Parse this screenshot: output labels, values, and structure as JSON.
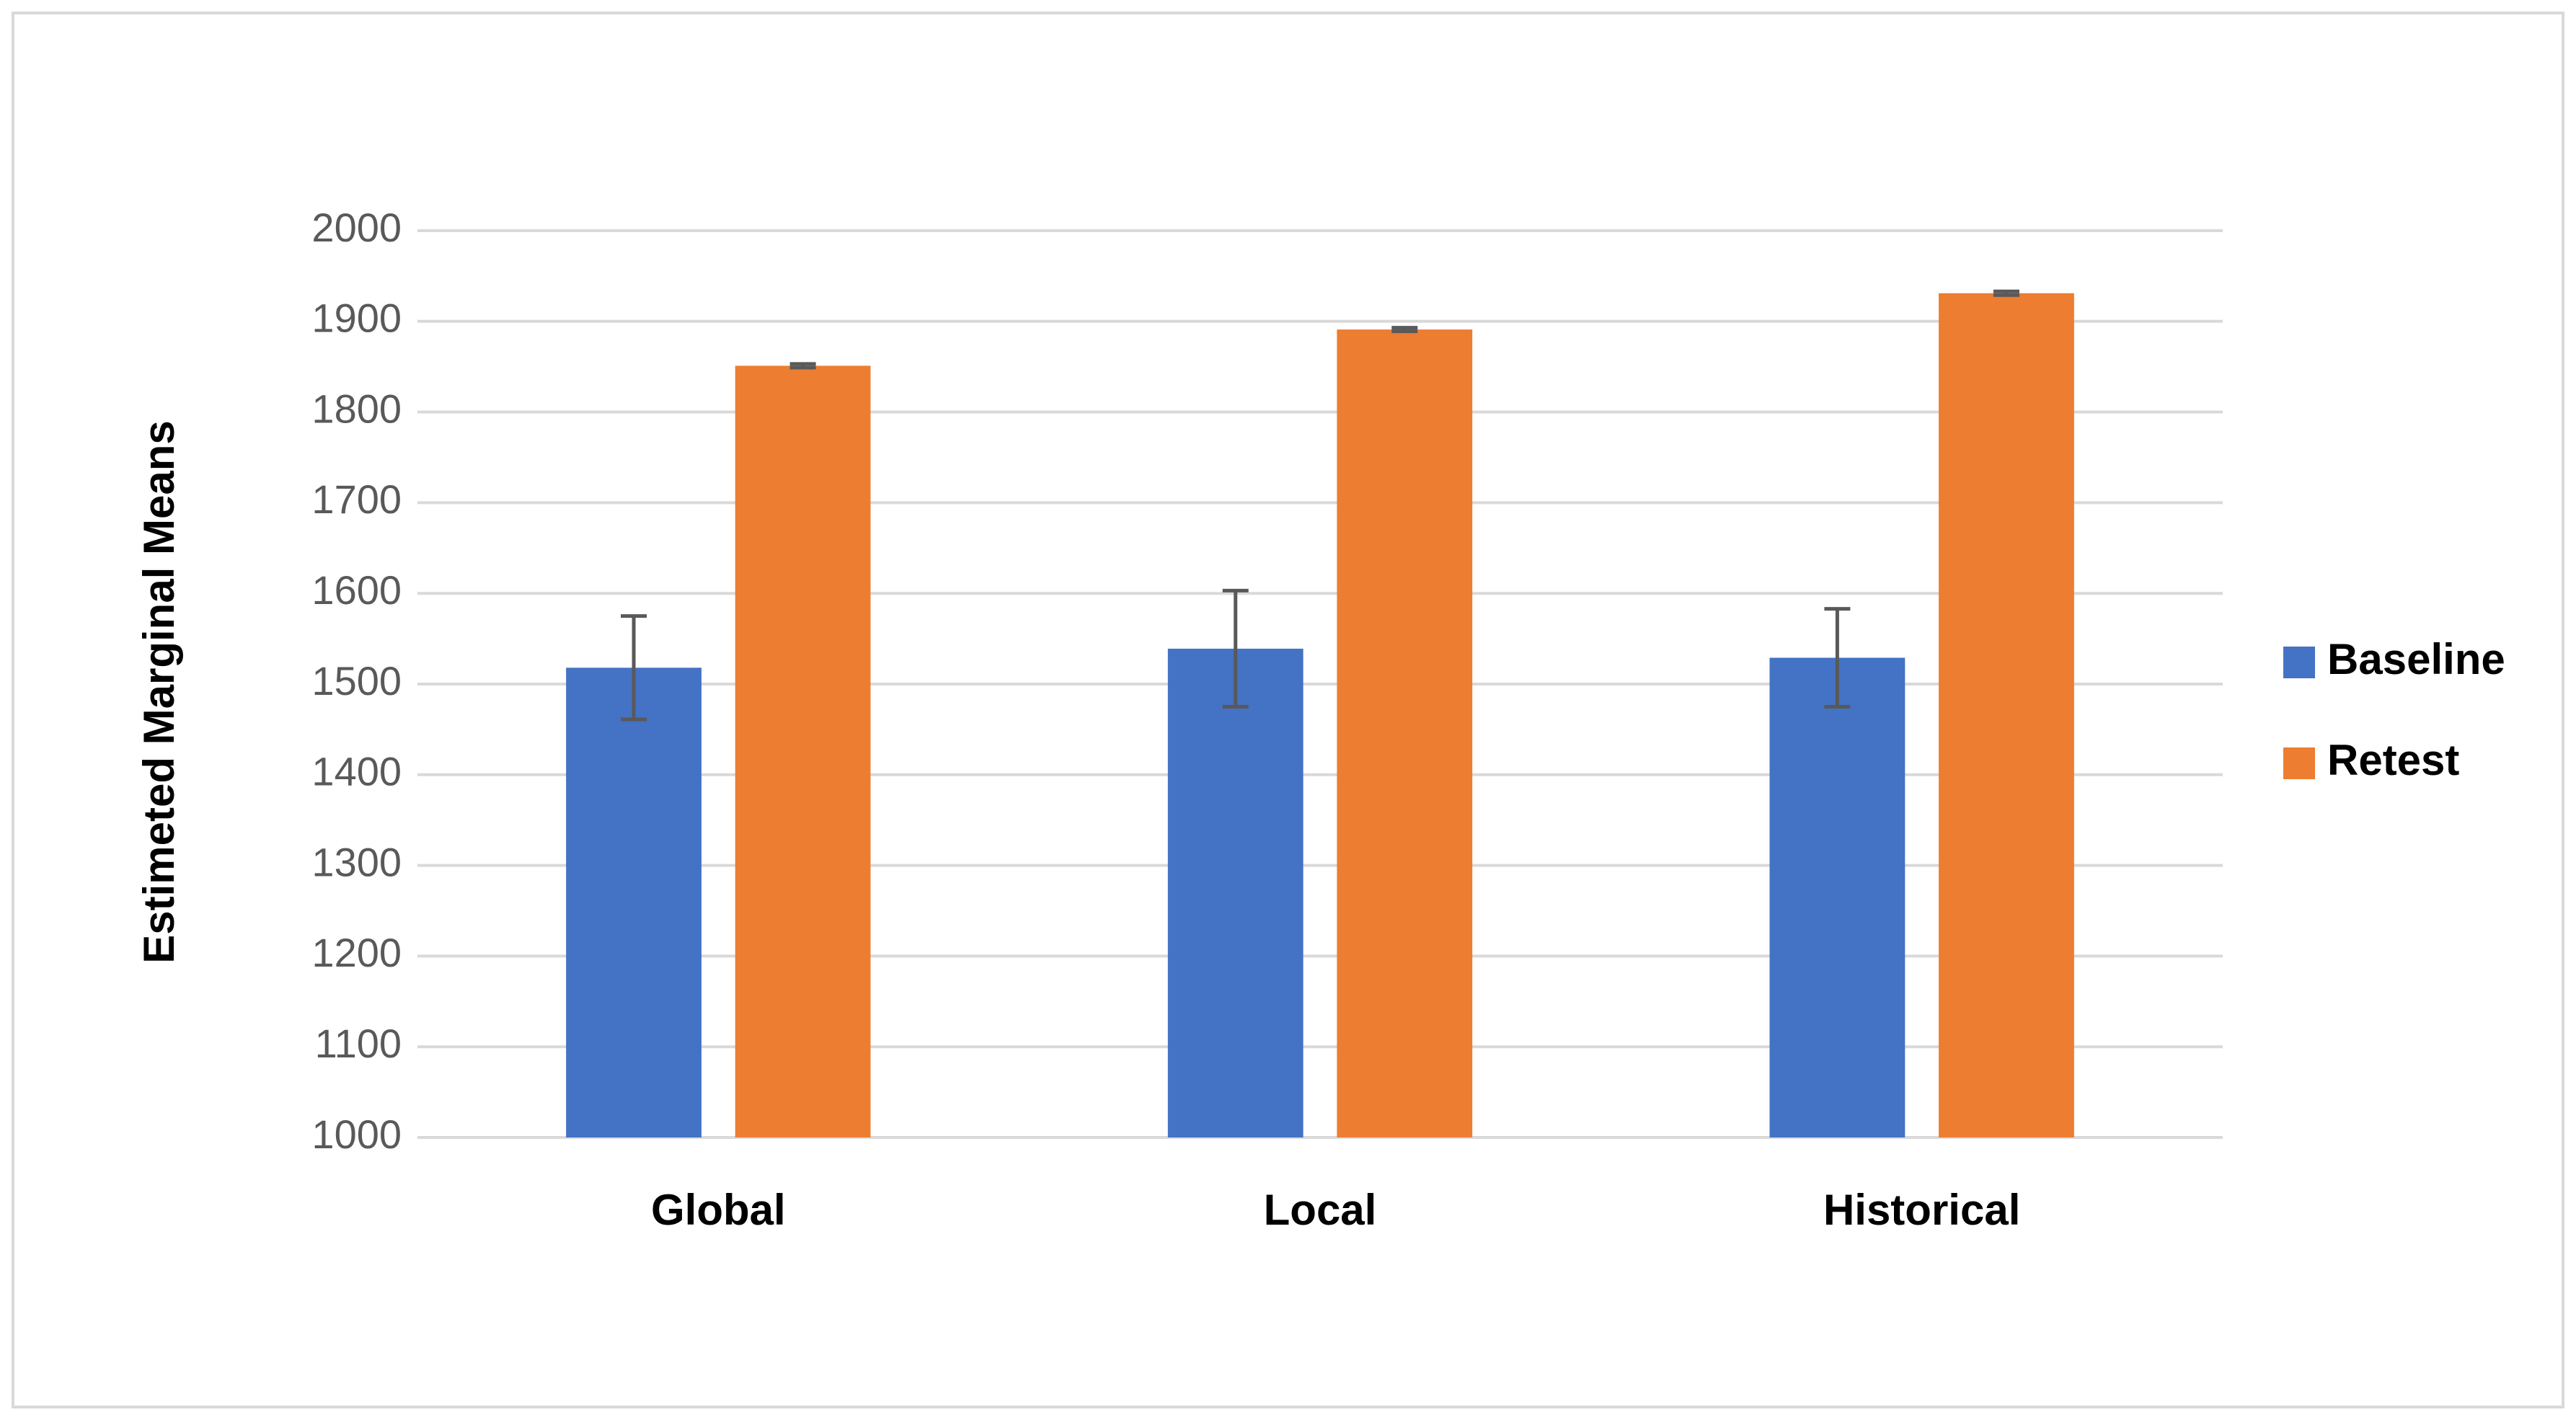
{
  "chart_data": {
    "type": "bar",
    "y_label": "Estimeted Marginal Means",
    "categories": [
      "Global",
      "Local",
      "Historical"
    ],
    "series": [
      {
        "name": "Baseline",
        "color": "#4472c4",
        "values": [
          1518,
          1539,
          1529
        ],
        "errors": [
          57,
          64,
          54
        ]
      },
      {
        "name": "Retest",
        "color": "#ed7d31",
        "values": [
          1851,
          1891,
          1931
        ],
        "errors": [
          2,
          2,
          2
        ]
      }
    ],
    "ylim": [
      1000,
      2000
    ],
    "yticks": [
      1000,
      1100,
      1200,
      1300,
      1400,
      1500,
      1600,
      1700,
      1800,
      1900,
      2000
    ],
    "grid": true,
    "legend": "right"
  }
}
